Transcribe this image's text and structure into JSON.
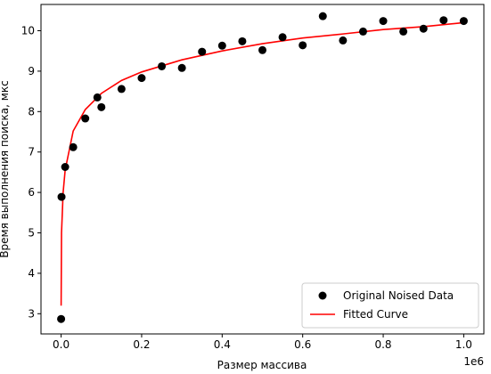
{
  "chart_data": {
    "type": "scatter",
    "title": "",
    "xlabel": "Размер массива",
    "ylabel": "Время выполнения поиска, мкс",
    "x_offset_label": "1e6",
    "xlim": [
      -50000,
      1050000
    ],
    "ylim": [
      2.5,
      10.65
    ],
    "xticks": [
      0,
      200000,
      400000,
      600000,
      800000,
      1000000
    ],
    "xtick_labels": [
      "0.0",
      "0.2",
      "0.4",
      "0.6",
      "0.8",
      "1.0"
    ],
    "yticks": [
      3,
      4,
      5,
      6,
      7,
      8,
      9,
      10
    ],
    "ytick_labels": [
      "3",
      "4",
      "5",
      "6",
      "7",
      "8",
      "9",
      "10"
    ],
    "grid": false,
    "legend_position": "bottom-right",
    "series": [
      {
        "name": "Original Noised Data",
        "kind": "points",
        "color": "#000000",
        "x": [
          1,
          1000,
          10000,
          30000,
          60000,
          90000,
          100000,
          150000,
          200000,
          250000,
          300000,
          350000,
          400000,
          450000,
          500000,
          550000,
          600000,
          650000,
          700000,
          750000,
          800000,
          850000,
          900000,
          950000,
          1000000
        ],
        "y": [
          2.87,
          5.89,
          6.63,
          7.12,
          7.83,
          8.35,
          8.11,
          8.56,
          8.83,
          9.12,
          9.08,
          9.48,
          9.63,
          9.74,
          9.52,
          9.84,
          9.64,
          10.36,
          9.76,
          9.98,
          10.24,
          9.98,
          10.05,
          10.26,
          10.24
        ]
      },
      {
        "name": "Fitted Curve",
        "kind": "line",
        "color": "#ff0000",
        "x": [
          1,
          1000,
          5000,
          10000,
          30000,
          60000,
          100000,
          150000,
          200000,
          300000,
          400000,
          500000,
          600000,
          700000,
          800000,
          900000,
          1000000
        ],
        "y": [
          3.2,
          5.0,
          6.0,
          6.55,
          7.52,
          8.05,
          8.45,
          8.77,
          8.98,
          9.28,
          9.5,
          9.68,
          9.82,
          9.92,
          10.03,
          10.1,
          10.2
        ]
      }
    ]
  }
}
